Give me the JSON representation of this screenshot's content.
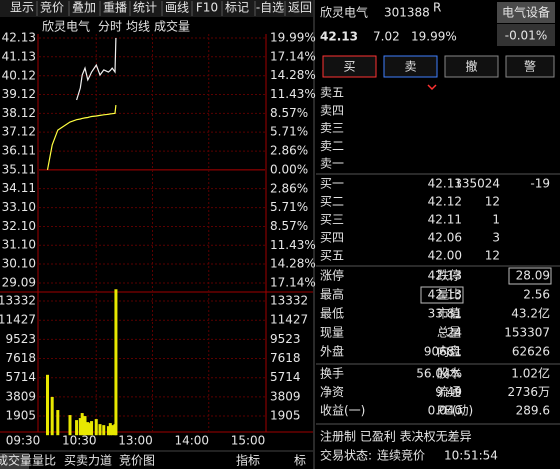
{
  "toolbar": [
    "显示",
    "竞价",
    "叠加",
    "重播",
    "统计",
    "画线",
    "F10",
    "标记",
    "-自选",
    "返回"
  ],
  "chart_data": [
    {
      "type": "line",
      "title": "欣灵电气",
      "x": [
        "09:38",
        "09:43",
        "09:49",
        "10:02",
        "10:09",
        "10:13",
        "10:15",
        "10:18",
        "10:21",
        "10:23",
        "10:25",
        "10:30",
        "10:34",
        "10:38",
        "10:43",
        "10:45",
        "10:47",
        "10:50",
        "10:51"
      ],
      "series": [
        {
          "name": "分时",
          "color": "#f0f0f0",
          "values": [
            null,
            null,
            null,
            null,
            38.83,
            39.47,
            40.16,
            40.53,
            39.9,
            40.1,
            40.32,
            40.69,
            40.16,
            40.43,
            40.32,
            40.4,
            40.53,
            40.32,
            42.13
          ]
        },
        {
          "name": "均线",
          "color": "#ffff40",
          "values": [
            35.11,
            36.44,
            37.23,
            37.66,
            37.78,
            37.82,
            37.85,
            37.88,
            37.9,
            37.93,
            37.95,
            37.98,
            38.01,
            38.04,
            38.07,
            38.09,
            38.1,
            38.12,
            38.56
          ]
        }
      ],
      "ylim": [
        29.09,
        42.13
      ],
      "yticks": [
        42.13,
        41.13,
        40.12,
        39.12,
        38.12,
        37.12,
        36.11,
        35.11,
        34.11,
        {
          "value": 33.1,
          "label": "33.10"
        },
        {
          "value": 32.1,
          "label": "32.10"
        },
        {
          "value": 31.1,
          "label": "31.10"
        },
        {
          "value": 30.1,
          "label": "30.10"
        },
        29.09
      ],
      "y2lim": [
        -17.14,
        19.99
      ],
      "y2ticks": [
        {
          "value": 19.99,
          "label": "19.99%"
        },
        {
          "value": 17.14,
          "label": "17.14%"
        },
        {
          "value": 14.28,
          "label": "14.28%"
        },
        {
          "value": 11.43,
          "label": "11.43%"
        },
        {
          "value": 8.57,
          "label": "8.57%"
        },
        {
          "value": 5.71,
          "label": "5.71%"
        },
        {
          "value": 2.86,
          "label": "2.86%"
        },
        {
          "value": 0,
          "label": "0.00%"
        },
        {
          "value": -2.86,
          "label": "2.86%"
        },
        {
          "value": -5.71,
          "label": "5.71%"
        },
        {
          "value": -8.57,
          "label": "8.57%"
        },
        {
          "value": -11.43,
          "label": "11.43%"
        },
        {
          "value": -14.28,
          "label": "14.28%"
        },
        {
          "value": -17.14,
          "label": "17.14%"
        }
      ],
      "xticks": [
        "09:30",
        "10:30",
        "13:00",
        "14:00",
        "15:00"
      ],
      "grid": true
    },
    {
      "type": "bar",
      "x": [
        "09:38",
        "09:43",
        "09:49",
        "10:02",
        "10:09",
        "10:13",
        "10:15",
        "10:18",
        "10:21",
        "10:23",
        "10:25",
        "10:30",
        "10:34",
        "10:38",
        "10:43",
        "10:45",
        "10:47",
        "10:50",
        "10:51"
      ],
      "series": [
        {
          "name": "成交量",
          "color": "#e8e800",
          "values": [
            6000,
            3800,
            2500,
            2000,
            1500,
            1700,
            2200,
            1900,
            1300,
            1200,
            1400,
            1600,
            1100,
            1000,
            900,
            1200,
            1000,
            1100,
            14500
          ]
        }
      ],
      "ylim": [
        0,
        14427
      ],
      "yticks": [
        13332,
        11427,
        9523,
        7618,
        5714,
        3809,
        1905
      ],
      "grid": true
    }
  ],
  "bottom_tabs": [
    "成交量",
    "量比",
    "买卖力道",
    "竞价图",
    "指标",
    "标"
  ],
  "quote": {
    "name": "欣灵电气",
    "code": "301388",
    "badge": "R",
    "sector": "电气设备",
    "sector_change": "-0.01%",
    "price": "42.13",
    "change": "7.02",
    "change_pct": "19.99%",
    "buttons": [
      "买",
      "卖",
      "撤",
      "警"
    ],
    "asks": [
      "卖五",
      "卖四",
      "卖三",
      "卖二",
      "卖一"
    ],
    "bids": [
      [
        "买一",
        "42.13",
        "135024",
        "-19"
      ],
      [
        "买二",
        "42.12",
        "12"
      ],
      [
        "买三",
        "42.11",
        "1"
      ],
      [
        "买四",
        "42.06",
        "3"
      ],
      [
        "买五",
        "42.00",
        "12"
      ]
    ],
    "stats": [
      [
        [
          "涨停",
          "42.13"
        ],
        [
          "跌停",
          "28.09"
        ]
      ],
      [
        [
          "最高",
          "42.13"
        ],
        [
          "量比",
          "2.56"
        ]
      ],
      [
        [
          "最低",
          "33.81"
        ],
        [
          "市值",
          "43.2亿"
        ]
      ],
      [
        [
          "现量",
          "24"
        ],
        [
          "总量",
          "153307"
        ]
      ],
      [
        [
          "外盘",
          "90681"
        ],
        [
          "内盘",
          "62626"
        ]
      ]
    ],
    "stats2": [
      [
        [
          "换手",
          "56.04%"
        ],
        [
          "股本",
          "1.02亿"
        ]
      ],
      [
        [
          "净资",
          "9.49"
        ],
        [
          "流通",
          "2736万"
        ]
      ],
      [
        [
          "收益(一)",
          "0.040"
        ],
        [
          "PE(动)",
          "289.6"
        ]
      ]
    ],
    "tags": "注册制 已盈利 表决权无差异",
    "status_label": "交易状态:",
    "status": "连续竞价",
    "time": "10:51:54"
  }
}
